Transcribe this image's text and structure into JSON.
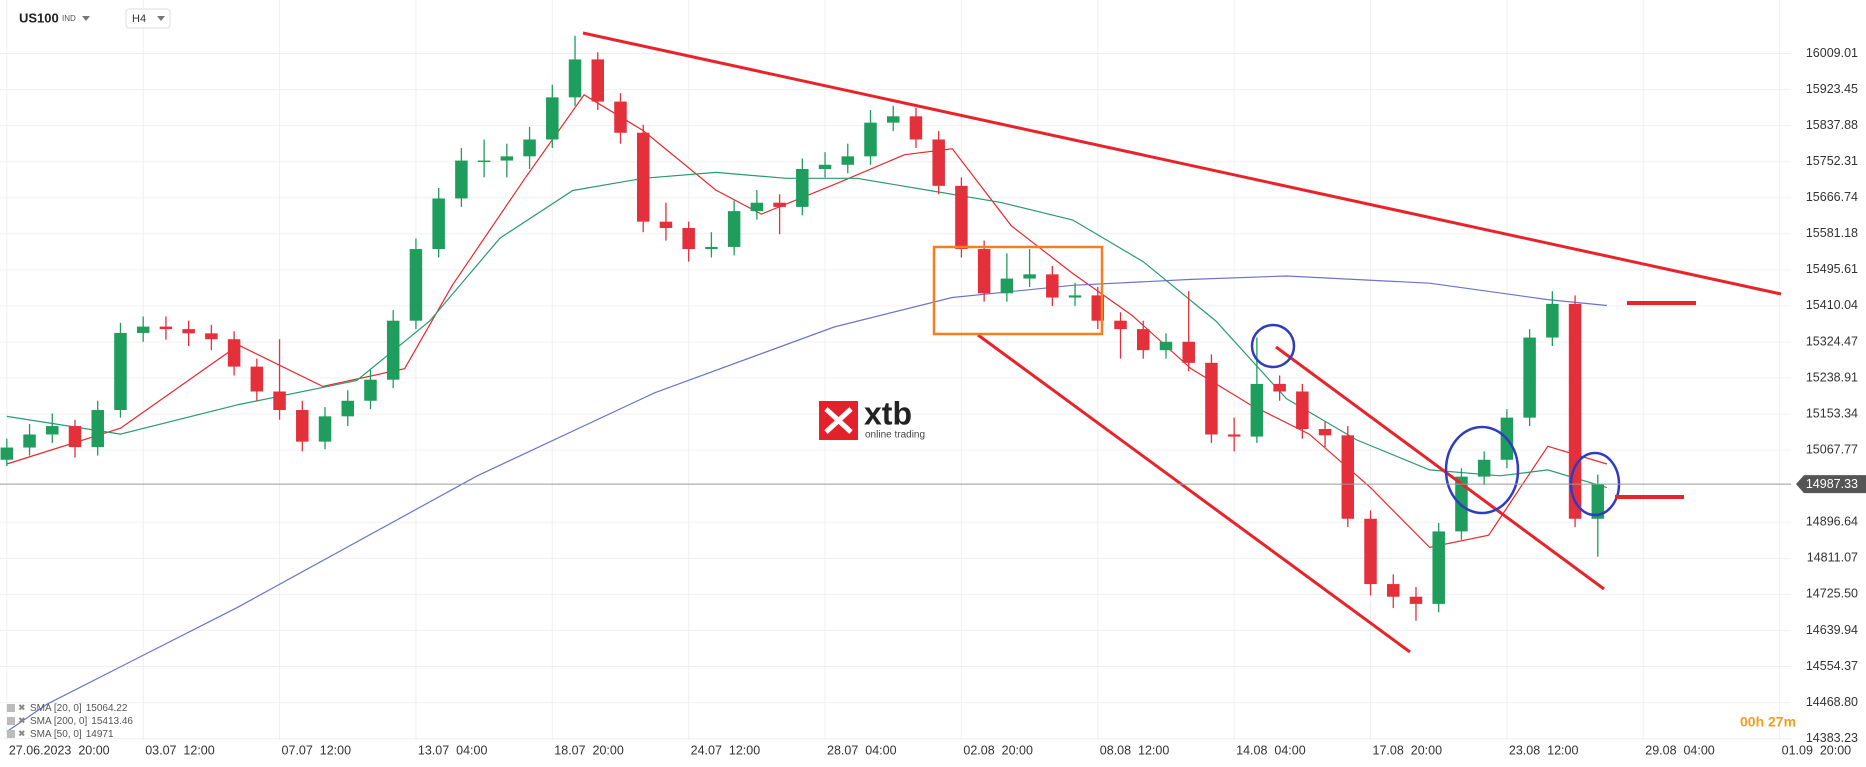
{
  "chart_data": {
    "type": "candlestick",
    "symbol": "US100",
    "symbol_tag": "IND",
    "timeframe": "H4",
    "x": [
      0,
      1,
      2,
      3,
      4,
      5,
      6,
      7,
      8,
      9,
      10,
      11,
      12,
      13,
      14,
      15,
      16,
      17,
      18,
      19,
      20,
      21,
      22,
      23,
      24,
      25,
      26,
      27,
      28,
      29,
      30,
      31,
      32,
      33,
      34,
      35,
      36,
      37,
      38,
      39,
      40,
      41,
      42,
      43,
      44,
      45,
      46,
      47,
      48,
      49,
      50,
      51,
      52,
      53,
      54,
      55,
      56,
      57,
      58,
      59,
      60,
      61,
      62,
      63,
      64,
      65,
      66,
      67,
      68,
      69,
      70
    ],
    "open": [
      15045,
      15074,
      15105,
      15125,
      15075,
      15163,
      15346,
      15361,
      15355,
      15345,
      15331,
      15266,
      15207,
      15163,
      15088,
      15148,
      15185,
      15235,
      15375,
      15545,
      15665,
      15755,
      15755,
      15765,
      15805,
      15905,
      15995,
      15895,
      15821,
      15610,
      15595,
      15545,
      15550,
      15635,
      15655,
      15645,
      15735,
      15745,
      15765,
      15845,
      15860,
      15805,
      15695,
      15545,
      15440,
      15475,
      15485,
      15430,
      15435,
      15375,
      15355,
      15305,
      15325,
      15275,
      15105,
      15100,
      15225,
      15207,
      15118,
      15103,
      14905,
      14750,
      14720,
      14703,
      14875,
      15005,
      15045,
      15145,
      15335,
      15415,
      14905
    ],
    "high": [
      15095,
      15130,
      15155,
      15140,
      15185,
      15370,
      15385,
      15385,
      15375,
      15365,
      15350,
      15285,
      15331,
      15185,
      15170,
      15210,
      15260,
      15400,
      15570,
      15690,
      15785,
      15805,
      15795,
      15835,
      15935,
      16051,
      16012,
      15915,
      15840,
      15655,
      15610,
      15585,
      15660,
      15685,
      15675,
      15760,
      15775,
      15795,
      15875,
      15885,
      15880,
      15825,
      15715,
      15565,
      15535,
      15545,
      15505,
      15465,
      15455,
      15395,
      15375,
      15345,
      15445,
      15295,
      15145,
      15335,
      15245,
      15225,
      15135,
      15125,
      14925,
      14773,
      14743,
      14895,
      15025,
      15065,
      15165,
      15355,
      15445,
      15435,
      15010
    ],
    "low": [
      15030,
      15055,
      15085,
      15050,
      15055,
      15145,
      15325,
      15330,
      15315,
      15305,
      15245,
      15185,
      15140,
      15065,
      15070,
      15125,
      15165,
      15215,
      15355,
      15525,
      15645,
      15715,
      15715,
      15735,
      15785,
      15885,
      15875,
      15795,
      15585,
      15565,
      15515,
      15525,
      15530,
      15615,
      15580,
      15625,
      15715,
      15725,
      15745,
      15825,
      15785,
      15675,
      15525,
      15420,
      15420,
      15455,
      15410,
      15410,
      15355,
      15285,
      15285,
      15285,
      15255,
      15085,
      15065,
      15085,
      15185,
      15095,
      15075,
      14885,
      14723,
      14693,
      14663,
      14683,
      14855,
      14985,
      15025,
      15125,
      15315,
      14885,
      14815
    ],
    "close": [
      15074,
      15105,
      15125,
      15075,
      15163,
      15346,
      15361,
      15355,
      15345,
      15331,
      15266,
      15207,
      15163,
      15088,
      15148,
      15185,
      15235,
      15375,
      15545,
      15665,
      15755,
      15755,
      15765,
      15805,
      15905,
      15995,
      15895,
      15821,
      15610,
      15595,
      15545,
      15550,
      15635,
      15655,
      15645,
      15735,
      15745,
      15765,
      15845,
      15860,
      15805,
      15695,
      15545,
      15440,
      15475,
      15485,
      15430,
      15435,
      15375,
      15355,
      15305,
      15325,
      15275,
      15105,
      15100,
      15225,
      15207,
      15118,
      15103,
      14905,
      14750,
      14720,
      14703,
      14875,
      15005,
      15045,
      15145,
      15335,
      15415,
      14905,
      14987
    ],
    "up_color": "#1f9d5c",
    "down_color": "#e3303b",
    "series": [
      {
        "name": "SMA [20, 0]",
        "last": 15064.22,
        "color": "#e8292e",
        "x": [
          0,
          5,
          10.2,
          13.9,
          17.5,
          19.6,
          22.8,
          25.4,
          28,
          31.2,
          33.2,
          36.4,
          39.5,
          41.6,
          44.2,
          46.9,
          49.5,
          52.1,
          54.7,
          57.3,
          60,
          62.6,
          65.2,
          67.8,
          70.4
        ],
        "values": [
          15035,
          15120,
          15317,
          15219,
          15261,
          15459,
          15713,
          15911,
          15826,
          15685,
          15628,
          15698,
          15769,
          15783,
          15600,
          15487,
          15388,
          15261,
          15176,
          15106,
          14979,
          14837,
          14866,
          15077,
          15035
        ]
      },
      {
        "name": "SMA [200, 0]",
        "last": 15413.46,
        "color": "#6b74c9",
        "x": [
          0,
          1.8,
          10.2,
          20.7,
          28.5,
          36.4,
          41.6,
          46.9,
          52.1,
          56.3,
          62.6,
          67.8,
          70.4
        ],
        "values": [
          14400,
          14466,
          14696,
          15007,
          15204,
          15360,
          15430,
          15459,
          15473,
          15481,
          15464,
          15425,
          15411
        ]
      },
      {
        "name": "SMA [50, 0]",
        "last": 14971.0,
        "color": "#2a9a70",
        "x": [
          0,
          5,
          10.2,
          15.4,
          18.6,
          21.7,
          24.9,
          28,
          31.2,
          34.3,
          37.4,
          40.6,
          43.7,
          46.9,
          50,
          53.2,
          56.3,
          59.4,
          62.6,
          65.7,
          67.8,
          70.4
        ],
        "values": [
          15148,
          15106,
          15176,
          15233,
          15374,
          15571,
          15684,
          15713,
          15727,
          15713,
          15713,
          15684,
          15656,
          15614,
          15515,
          15374,
          15190,
          15092,
          15021,
          15007,
          15021,
          14979
        ]
      }
    ],
    "last_price": 14987.33,
    "xlim": [
      -0.3,
      78.5
    ],
    "ylim": [
      14380,
      16136
    ],
    "xticks": [
      {
        "value": 0,
        "label": "27.06.2023  20:00"
      },
      {
        "value": 6,
        "label": "03.07  12:00"
      },
      {
        "value": 12,
        "label": "07.07  12:00"
      },
      {
        "value": 18,
        "label": "13.07  04:00"
      },
      {
        "value": 24,
        "label": "18.07  20:00"
      },
      {
        "value": 30,
        "label": "24.07  12:00"
      },
      {
        "value": 36,
        "label": "28.07  04:00"
      },
      {
        "value": 42,
        "label": "02.08  20:00"
      },
      {
        "value": 48,
        "label": "08.08  12:00"
      },
      {
        "value": 54,
        "label": "14.08  04:00"
      },
      {
        "value": 60,
        "label": "17.08  20:00"
      },
      {
        "value": 66,
        "label": "23.08  12:00"
      },
      {
        "value": 72,
        "label": "29.08  04:00"
      },
      {
        "value": 78,
        "label": "01.09  20:00"
      }
    ],
    "yticks": [
      16009.01,
      15923.45,
      15837.88,
      15752.31,
      15666.74,
      15581.18,
      15495.61,
      15410.04,
      15324.47,
      15238.91,
      15153.34,
      15067.77,
      14896.64,
      14811.07,
      {
        "value": 14725.5,
        "label": "14725.50"
      },
      14639.94,
      14554.37,
      {
        "value": 14468.8,
        "label": "14468.80"
      },
      14383.23
    ],
    "grid": true,
    "timer": "00h 27m",
    "logo": {
      "name": "xtb",
      "tagline": "online trading"
    }
  }
}
